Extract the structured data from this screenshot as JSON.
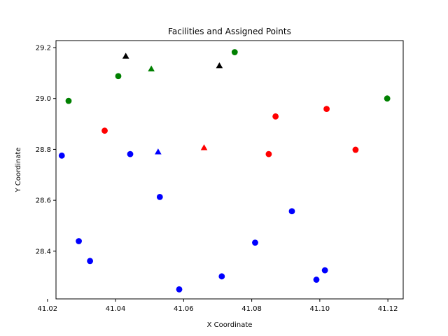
{
  "chart_data": {
    "type": "scatter",
    "title": "Facilities and Assigned Points",
    "xlabel": "X Coordinate",
    "ylabel": "Y Coordinate",
    "xlim": [
      41.0225,
      41.1245
    ],
    "ylim": [
      28.2125,
      29.2275
    ],
    "xticks": [
      41.02,
      41.04,
      41.06,
      41.08,
      41.1,
      41.12
    ],
    "xtick_labels": [
      "41.02",
      "41.04",
      "41.06",
      "41.08",
      "41.10",
      "41.12"
    ],
    "yticks": [
      28.4,
      28.6,
      28.8,
      29.0,
      29.2
    ],
    "ytick_labels": [
      "28.4",
      "28.6",
      "28.8",
      "29.0",
      "29.2"
    ],
    "grid": false,
    "legend": null,
    "colors": {
      "green": "#008000",
      "red": "#ff0000",
      "blue": "#0000ff",
      "black": "#000000"
    },
    "series": [
      {
        "marker": "triangle",
        "color": "#000000",
        "points": [
          [
            41.043,
            29.1665
          ],
          [
            41.0705,
            29.129
          ]
        ]
      },
      {
        "marker": "triangle",
        "color": "#008000",
        "points": [
          [
            41.0505,
            29.1165
          ]
        ]
      },
      {
        "marker": "triangle",
        "color": "#ff0000",
        "points": [
          [
            41.066,
            28.807
          ]
        ]
      },
      {
        "marker": "triangle",
        "color": "#0000ff",
        "points": [
          [
            41.0525,
            28.7905
          ]
        ]
      },
      {
        "marker": "circle",
        "color": "#008000",
        "points": [
          [
            41.075,
            29.182
          ],
          [
            41.0408,
            29.088
          ],
          [
            41.0262,
            28.9905
          ],
          [
            41.1198,
            29.0
          ]
        ]
      },
      {
        "marker": "circle",
        "color": "#ff0000",
        "points": [
          [
            41.0368,
            28.8735
          ],
          [
            41.087,
            28.9295
          ],
          [
            41.102,
            28.959
          ],
          [
            41.1105,
            28.7985
          ],
          [
            41.085,
            28.7815
          ]
        ]
      },
      {
        "marker": "circle",
        "color": "#0000ff",
        "points": [
          [
            41.0242,
            28.7755
          ],
          [
            41.0443,
            28.7815
          ],
          [
            41.053,
            28.613
          ],
          [
            41.0918,
            28.557
          ],
          [
            41.0292,
            28.4395
          ],
          [
            41.081,
            28.4335
          ],
          [
            41.0325,
            28.3615
          ],
          [
            41.0712,
            28.301
          ],
          [
            41.1015,
            28.325
          ],
          [
            41.099,
            28.288
          ],
          [
            41.0587,
            28.25
          ]
        ]
      }
    ]
  }
}
